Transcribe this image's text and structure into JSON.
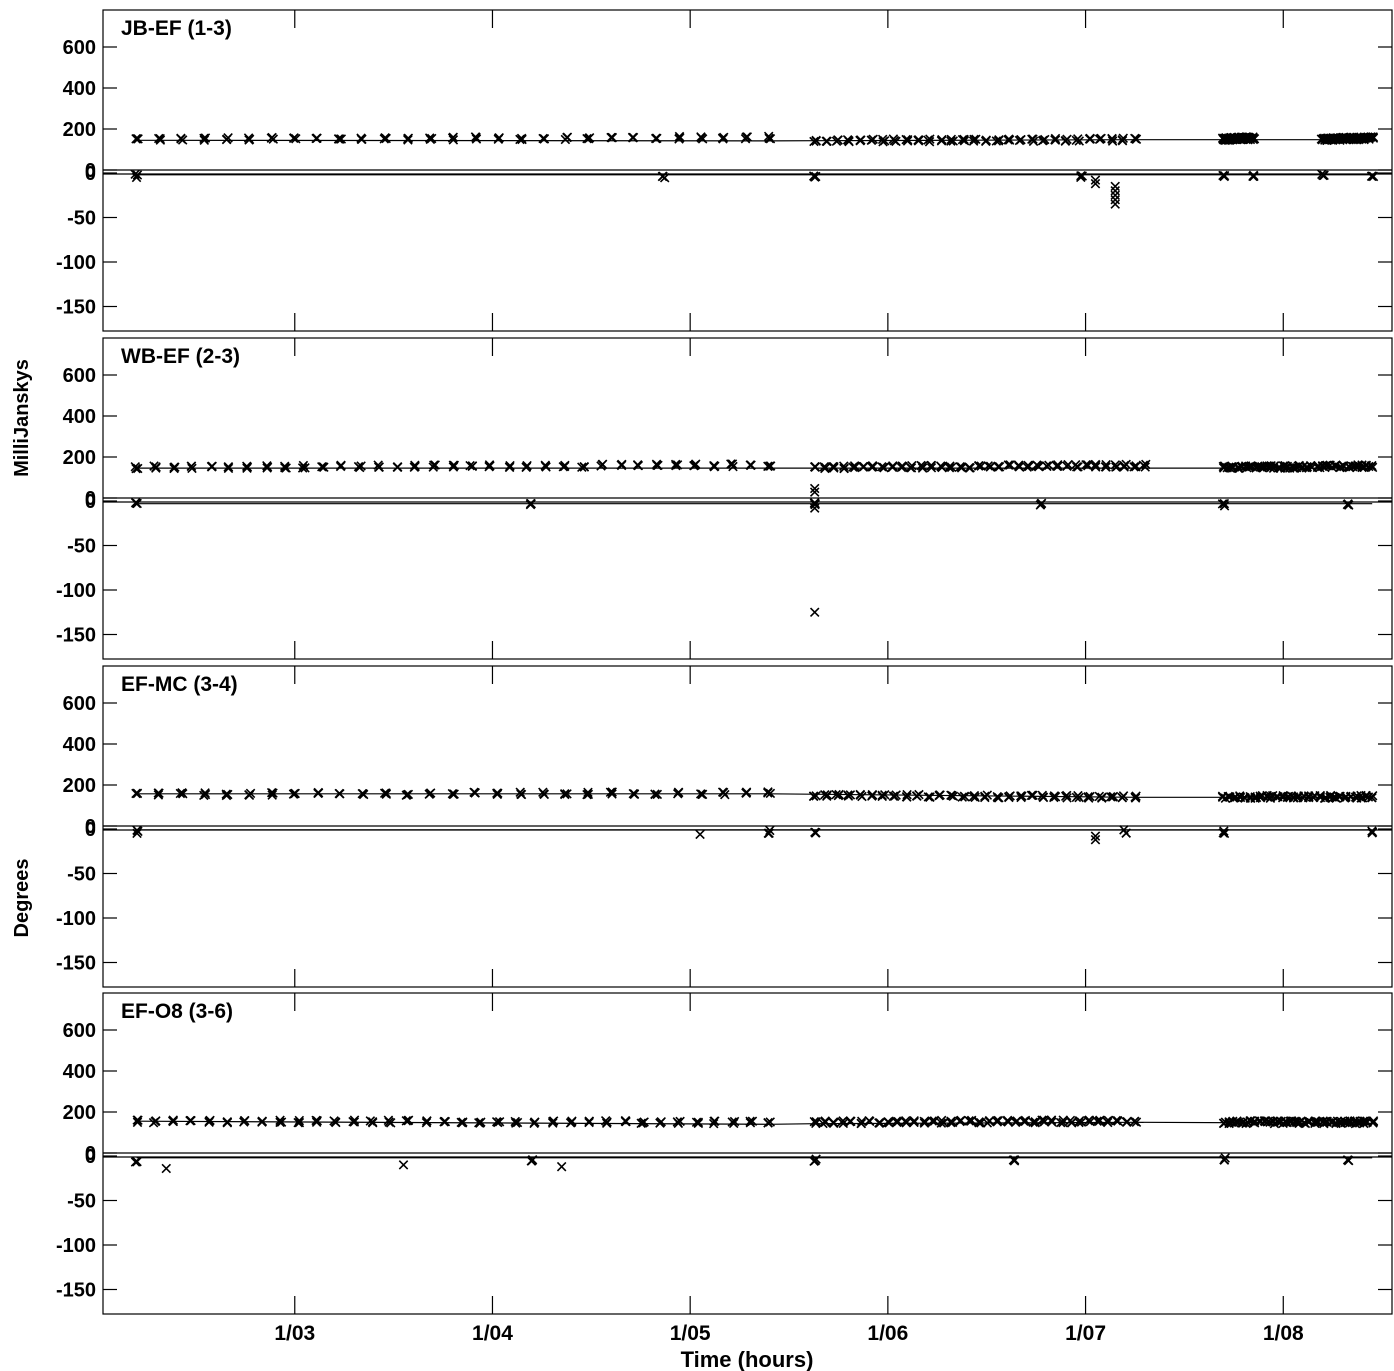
{
  "chart_data": [
    {
      "type": "scatter",
      "panel_label": "JB-EF (1-3)",
      "x_unit": "hours",
      "amp_ticks": [
        0,
        200,
        400,
        600
      ],
      "phase_ticks": [
        0,
        -50,
        -100,
        -150
      ],
      "series": [
        {
          "kind": "amplitude",
          "blocks": [
            [
              2.2,
              5.4,
              150,
              158,
              140
            ],
            [
              5.63,
              7.25,
              143,
              148,
              140
            ],
            [
              7.7,
              7.85,
              152,
              155,
              140
            ],
            [
              8.2,
              8.45,
              150,
              155,
              140
            ]
          ],
          "model": [
            [
              2.2,
              145
            ],
            [
              5.4,
              142
            ],
            [
              5.63,
              143
            ],
            [
              7.25,
              148
            ],
            [
              8.45,
              148
            ]
          ]
        },
        {
          "kind": "phase",
          "blocks": [
            [
              2.2,
              5.4,
              -3,
              -4,
              6
            ],
            [
              5.63,
              7.25,
              -3,
              -3,
              6
            ],
            [
              7.7,
              7.85,
              -3,
              -3,
              4
            ],
            [
              8.2,
              8.45,
              -3,
              -2,
              4
            ]
          ],
          "outliers": [
            [
              7.15,
              -15
            ],
            [
              7.15,
              -20
            ],
            [
              7.15,
              -25
            ],
            [
              7.15,
              -30
            ],
            [
              7.15,
              -35
            ],
            [
              7.05,
              -12
            ],
            [
              7.05,
              -8
            ]
          ],
          "model": [
            [
              2.2,
              -2
            ],
            [
              8.45,
              -2
            ]
          ]
        }
      ]
    },
    {
      "type": "scatter",
      "panel_label": "WB-EF (2-3)",
      "x_unit": "hours",
      "amp_ticks": [
        0,
        200,
        400,
        600
      ],
      "phase_ticks": [
        0,
        -50,
        -100,
        -150
      ],
      "series": [
        {
          "kind": "amplitude",
          "blocks": [
            [
              2.2,
              5.4,
              150,
              160,
              170
            ],
            [
              5.63,
              7.3,
              150,
              158,
              170
            ],
            [
              7.7,
              8.45,
              150,
              155,
              160
            ]
          ],
          "model": [
            [
              2.2,
              146
            ],
            [
              8.45,
              146
            ]
          ]
        },
        {
          "kind": "phase",
          "blocks": [
            [
              2.2,
              5.4,
              -4,
              -4,
              8
            ],
            [
              5.63,
              7.0,
              -4,
              -4,
              6
            ],
            [
              7.7,
              8.45,
              -4,
              -4,
              6
            ]
          ],
          "outliers": [
            [
              5.63,
              -125
            ],
            [
              5.63,
              14
            ],
            [
              5.63,
              10
            ],
            [
              5.63,
              -8
            ],
            [
              5.63,
              -2
            ]
          ],
          "model": [
            [
              2.2,
              -3
            ],
            [
              8.45,
              -3
            ]
          ]
        }
      ]
    },
    {
      "type": "scatter",
      "panel_label": "EF-MC (3-4)",
      "x_unit": "hours",
      "amp_ticks": [
        0,
        200,
        400,
        600
      ],
      "phase_ticks": [
        0,
        -50,
        -100,
        -150
      ],
      "series": [
        {
          "kind": "amplitude",
          "blocks": [
            [
              2.2,
              5.4,
              155,
              160,
              140
            ],
            [
              5.63,
              7.25,
              150,
              140,
              140
            ],
            [
              7.7,
              8.45,
              142,
              142,
              140
            ]
          ],
          "model": [
            [
              2.2,
              157
            ],
            [
              5.4,
              157
            ],
            [
              7.25,
              140
            ],
            [
              8.45,
              140
            ]
          ]
        },
        {
          "kind": "phase",
          "blocks": [
            [
              2.2,
              5.4,
              -3,
              -3,
              5
            ],
            [
              5.63,
              7.2,
              -3,
              -3,
              5
            ],
            [
              7.7,
              8.45,
              -3,
              -3,
              4
            ]
          ],
          "outliers": [
            [
              7.05,
              -12
            ],
            [
              7.05,
              -8
            ],
            [
              5.05,
              -6
            ]
          ],
          "model": [
            [
              2.2,
              -1
            ],
            [
              8.45,
              -1
            ]
          ]
        }
      ]
    },
    {
      "type": "scatter",
      "panel_label": "EF-O8 (3-6)",
      "x_unit": "hours",
      "amp_ticks": [
        0,
        200,
        400,
        600
      ],
      "phase_ticks": [
        0,
        -50,
        -100,
        -150
      ],
      "series": [
        {
          "kind": "amplitude",
          "blocks": [
            [
              2.2,
              5.4,
              155,
              150,
              175
            ],
            [
              5.63,
              7.25,
              150,
              155,
              175
            ],
            [
              7.7,
              8.45,
              150,
              150,
              165
            ]
          ],
          "model": [
            [
              2.2,
              155
            ],
            [
              5.4,
              140
            ],
            [
              5.63,
              143
            ],
            [
              7.25,
              150
            ],
            [
              8.45,
              145
            ]
          ]
        },
        {
          "kind": "phase",
          "blocks": [
            [
              2.2,
              5.4,
              -5,
              -5,
              8
            ],
            [
              5.63,
              7.25,
              -5,
              -5,
              8
            ],
            [
              7.7,
              8.45,
              -4,
              -4,
              6
            ]
          ],
          "outliers": [
            [
              2.35,
              -14
            ],
            [
              3.55,
              -10
            ],
            [
              4.35,
              -12
            ]
          ],
          "model": [
            [
              2.2,
              -2
            ],
            [
              8.45,
              -2
            ]
          ]
        }
      ]
    }
  ],
  "axes": {
    "x_range": [
      2.03,
      8.55
    ],
    "x_ticks": [
      3,
      4,
      5,
      6,
      7,
      8
    ],
    "x_tick_labels": [
      "1/03",
      "1/04",
      "1/05",
      "1/06",
      "1/07",
      "1/08"
    ],
    "xlabel": "Time (hours)",
    "ylabel_amplitude": "MilliJanskys",
    "ylabel_phase": "Degrees"
  }
}
